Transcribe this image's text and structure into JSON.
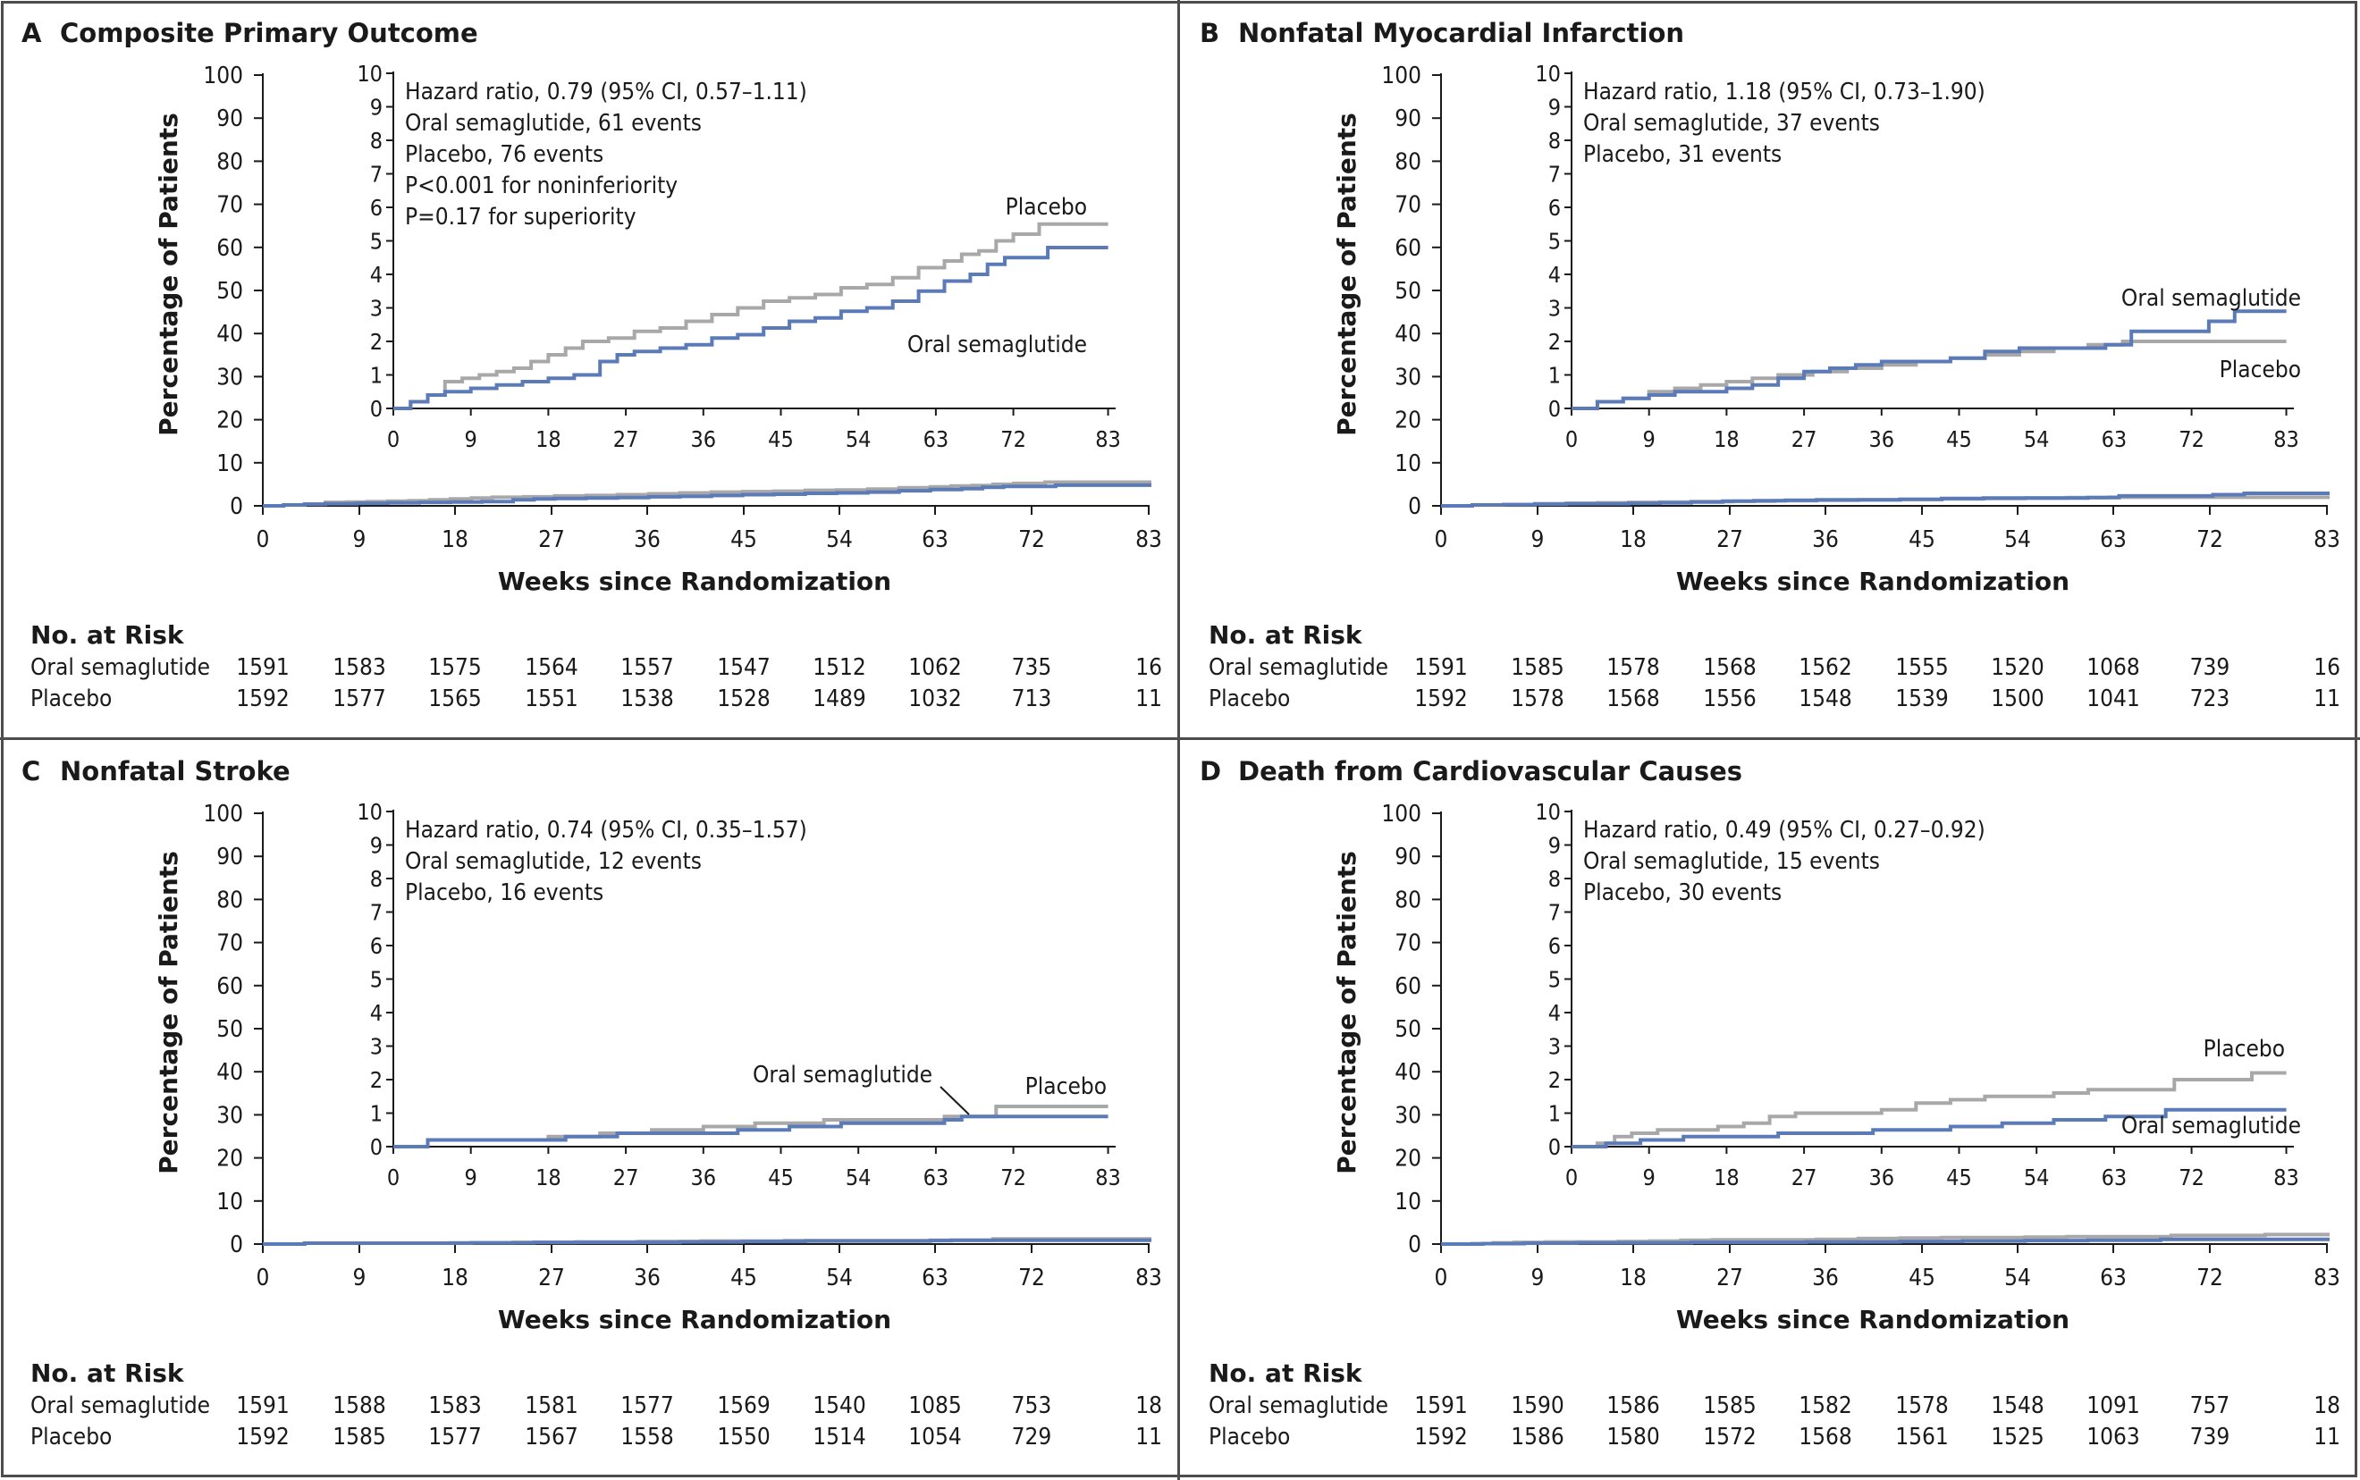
{
  "chart_data": [
    {
      "type": "line",
      "letter": "A",
      "title": "Composite Primary Outcome",
      "xlabel": "Weeks since Randomization",
      "ylabel": "Percentage of Patients",
      "x_ticks": [
        0,
        9,
        18,
        27,
        36,
        45,
        54,
        63,
        72,
        83
      ],
      "y_ticks": [
        0,
        10,
        20,
        30,
        40,
        50,
        60,
        70,
        80,
        90,
        100
      ],
      "xlim": [
        0,
        84.5
      ],
      "ylim": [
        0,
        100
      ],
      "inset": {
        "y_ticks": [
          0,
          1,
          2,
          3,
          4,
          5,
          6,
          7,
          8,
          9,
          10
        ],
        "ylim": [
          0,
          10
        ],
        "annotations": [
          "Hazard ratio, 0.79 (95% CI, 0.57–1.11)",
          "Oral semaglutide, 61 events",
          "Placebo, 76 events",
          "P<0.001 for noninferiority",
          "P=0.17 for superiority"
        ],
        "label_oral": "Oral semaglutide",
        "label_placebo": "Placebo"
      },
      "series": [
        {
          "name": "Placebo",
          "color": "#a8a8a8",
          "points": [
            [
              0,
              0
            ],
            [
              2,
              0.2
            ],
            [
              4,
              0.4
            ],
            [
              6,
              0.8
            ],
            [
              8,
              0.9
            ],
            [
              10,
              1.0
            ],
            [
              12,
              1.1
            ],
            [
              14,
              1.2
            ],
            [
              16,
              1.4
            ],
            [
              18,
              1.6
            ],
            [
              20,
              1.8
            ],
            [
              22,
              2.0
            ],
            [
              25,
              2.1
            ],
            [
              28,
              2.3
            ],
            [
              31,
              2.4
            ],
            [
              34,
              2.6
            ],
            [
              37,
              2.8
            ],
            [
              40,
              3.0
            ],
            [
              43,
              3.2
            ],
            [
              46,
              3.3
            ],
            [
              49,
              3.4
            ],
            [
              52,
              3.6
            ],
            [
              55,
              3.7
            ],
            [
              58,
              3.9
            ],
            [
              61,
              4.2
            ],
            [
              64,
              4.4
            ],
            [
              66,
              4.6
            ],
            [
              68,
              4.7
            ],
            [
              70,
              5.0
            ],
            [
              72,
              5.2
            ],
            [
              75,
              5.5
            ],
            [
              83,
              5.5
            ]
          ]
        },
        {
          "name": "Oral semaglutide",
          "color": "#5b7ab8",
          "points": [
            [
              0,
              0
            ],
            [
              2,
              0.2
            ],
            [
              4,
              0.4
            ],
            [
              6,
              0.5
            ],
            [
              9,
              0.6
            ],
            [
              12,
              0.7
            ],
            [
              15,
              0.8
            ],
            [
              18,
              0.9
            ],
            [
              21,
              1.0
            ],
            [
              24,
              1.4
            ],
            [
              26,
              1.6
            ],
            [
              28,
              1.7
            ],
            [
              31,
              1.8
            ],
            [
              34,
              1.9
            ],
            [
              37,
              2.1
            ],
            [
              40,
              2.2
            ],
            [
              43,
              2.4
            ],
            [
              46,
              2.6
            ],
            [
              49,
              2.7
            ],
            [
              52,
              2.9
            ],
            [
              55,
              3.0
            ],
            [
              58,
              3.2
            ],
            [
              61,
              3.5
            ],
            [
              64,
              3.8
            ],
            [
              67,
              4.0
            ],
            [
              69,
              4.3
            ],
            [
              71,
              4.5
            ],
            [
              74,
              4.5
            ],
            [
              76,
              4.8
            ],
            [
              83,
              4.8
            ]
          ]
        }
      ],
      "risk_table": {
        "header": "No. at Risk",
        "rows": [
          {
            "label": "Oral semaglutide",
            "values": [
              "1591",
              "1583",
              "1575",
              "1564",
              "1557",
              "1547",
              "1512",
              "1062",
              "735",
              "16"
            ]
          },
          {
            "label": "Placebo",
            "values": [
              "1592",
              "1577",
              "1565",
              "1551",
              "1538",
              "1528",
              "1489",
              "1032",
              "713",
              "11"
            ]
          }
        ]
      }
    },
    {
      "type": "line",
      "letter": "B",
      "title": "Nonfatal Myocardial Infarction",
      "xlabel": "Weeks since Randomization",
      "ylabel": "Percentage of Patients",
      "x_ticks": [
        0,
        9,
        18,
        27,
        36,
        45,
        54,
        63,
        72,
        83
      ],
      "y_ticks": [
        0,
        10,
        20,
        30,
        40,
        50,
        60,
        70,
        80,
        90,
        100
      ],
      "xlim": [
        0,
        84.5
      ],
      "ylim": [
        0,
        100
      ],
      "inset": {
        "y_ticks": [
          0,
          1,
          2,
          3,
          4,
          5,
          6,
          7,
          8,
          9,
          10
        ],
        "ylim": [
          0,
          10
        ],
        "annotations": [
          "Hazard ratio, 1.18 (95% CI, 0.73–1.90)",
          "Oral semaglutide, 37 events",
          "Placebo, 31 events"
        ],
        "label_oral": "Oral semaglutide",
        "label_placebo": "Placebo"
      },
      "series": [
        {
          "name": "Placebo",
          "color": "#a8a8a8",
          "points": [
            [
              0,
              0
            ],
            [
              3,
              0.2
            ],
            [
              6,
              0.3
            ],
            [
              9,
              0.5
            ],
            [
              12,
              0.6
            ],
            [
              15,
              0.7
            ],
            [
              18,
              0.8
            ],
            [
              21,
              0.9
            ],
            [
              24,
              1.0
            ],
            [
              28,
              1.1
            ],
            [
              32,
              1.2
            ],
            [
              36,
              1.3
            ],
            [
              40,
              1.4
            ],
            [
              44,
              1.5
            ],
            [
              48,
              1.6
            ],
            [
              52,
              1.7
            ],
            [
              56,
              1.8
            ],
            [
              60,
              1.9
            ],
            [
              64,
              2.0
            ],
            [
              83,
              2.0
            ]
          ]
        },
        {
          "name": "Oral semaglutide",
          "color": "#5b7ab8",
          "points": [
            [
              0,
              0
            ],
            [
              3,
              0.2
            ],
            [
              6,
              0.3
            ],
            [
              9,
              0.4
            ],
            [
              12,
              0.5
            ],
            [
              15,
              0.5
            ],
            [
              18,
              0.6
            ],
            [
              21,
              0.7
            ],
            [
              24,
              0.9
            ],
            [
              27,
              1.1
            ],
            [
              30,
              1.2
            ],
            [
              33,
              1.3
            ],
            [
              36,
              1.4
            ],
            [
              40,
              1.4
            ],
            [
              44,
              1.5
            ],
            [
              48,
              1.7
            ],
            [
              52,
              1.8
            ],
            [
              58,
              1.8
            ],
            [
              62,
              1.9
            ],
            [
              65,
              2.3
            ],
            [
              71,
              2.3
            ],
            [
              74,
              2.6
            ],
            [
              77,
              2.9
            ],
            [
              83,
              2.9
            ]
          ]
        }
      ],
      "risk_table": {
        "header": "No. at Risk",
        "rows": [
          {
            "label": "Oral semaglutide",
            "values": [
              "1591",
              "1585",
              "1578",
              "1568",
              "1562",
              "1555",
              "1520",
              "1068",
              "739",
              "16"
            ]
          },
          {
            "label": "Placebo",
            "values": [
              "1592",
              "1578",
              "1568",
              "1556",
              "1548",
              "1539",
              "1500",
              "1041",
              "723",
              "11"
            ]
          }
        ]
      }
    },
    {
      "type": "line",
      "letter": "C",
      "title": "Nonfatal Stroke",
      "xlabel": "Weeks since Randomization",
      "ylabel": "Percentage of Patients",
      "x_ticks": [
        0,
        9,
        18,
        27,
        36,
        45,
        54,
        63,
        72,
        83
      ],
      "y_ticks": [
        0,
        10,
        20,
        30,
        40,
        50,
        60,
        70,
        80,
        90,
        100
      ],
      "xlim": [
        0,
        84.5
      ],
      "ylim": [
        0,
        100
      ],
      "inset": {
        "y_ticks": [
          0,
          1,
          2,
          3,
          4,
          5,
          6,
          7,
          8,
          9,
          10
        ],
        "ylim": [
          0,
          10
        ],
        "annotations": [
          "Hazard ratio, 0.74 (95% CI, 0.35–1.57)",
          "Oral semaglutide, 12 events",
          "Placebo, 16 events"
        ],
        "label_oral": "Oral semaglutide",
        "label_placebo": "Placebo"
      },
      "series": [
        {
          "name": "Placebo",
          "color": "#a8a8a8",
          "points": [
            [
              0,
              0
            ],
            [
              4,
              0.2
            ],
            [
              12,
              0.2
            ],
            [
              18,
              0.3
            ],
            [
              24,
              0.4
            ],
            [
              30,
              0.5
            ],
            [
              36,
              0.6
            ],
            [
              42,
              0.7
            ],
            [
              50,
              0.8
            ],
            [
              58,
              0.8
            ],
            [
              64,
              0.9
            ],
            [
              70,
              1.2
            ],
            [
              83,
              1.2
            ]
          ]
        },
        {
          "name": "Oral semaglutide",
          "color": "#5b7ab8",
          "points": [
            [
              0,
              0
            ],
            [
              4,
              0.2
            ],
            [
              14,
              0.2
            ],
            [
              20,
              0.3
            ],
            [
              26,
              0.4
            ],
            [
              34,
              0.4
            ],
            [
              40,
              0.5
            ],
            [
              46,
              0.6
            ],
            [
              52,
              0.7
            ],
            [
              60,
              0.7
            ],
            [
              64,
              0.8
            ],
            [
              66,
              0.9
            ],
            [
              83,
              0.9
            ]
          ]
        }
      ],
      "risk_table": {
        "header": "No. at Risk",
        "rows": [
          {
            "label": "Oral semaglutide",
            "values": [
              "1591",
              "1588",
              "1583",
              "1581",
              "1577",
              "1569",
              "1540",
              "1085",
              "753",
              "18"
            ]
          },
          {
            "label": "Placebo",
            "values": [
              "1592",
              "1585",
              "1577",
              "1567",
              "1558",
              "1550",
              "1514",
              "1054",
              "729",
              "11"
            ]
          }
        ]
      }
    },
    {
      "type": "line",
      "letter": "D",
      "title": "Death from Cardiovascular Causes",
      "xlabel": "Weeks since Randomization",
      "ylabel": "Percentage of Patients",
      "x_ticks": [
        0,
        9,
        18,
        27,
        36,
        45,
        54,
        63,
        72,
        83
      ],
      "y_ticks": [
        0,
        10,
        20,
        30,
        40,
        50,
        60,
        70,
        80,
        90,
        100
      ],
      "xlim": [
        0,
        84.5
      ],
      "ylim": [
        0,
        100
      ],
      "inset": {
        "y_ticks": [
          0,
          1,
          2,
          3,
          4,
          5,
          6,
          7,
          8,
          9,
          10
        ],
        "ylim": [
          0,
          10
        ],
        "annotations": [
          "Hazard ratio, 0.49 (95% CI, 0.27–0.92)",
          "Oral semaglutide, 15 events",
          "Placebo, 30 events"
        ],
        "label_oral": "Oral semaglutide",
        "label_placebo": "Placebo"
      },
      "series": [
        {
          "name": "Placebo",
          "color": "#a8a8a8",
          "points": [
            [
              0,
              0
            ],
            [
              3,
              0.1
            ],
            [
              5,
              0.3
            ],
            [
              7,
              0.4
            ],
            [
              10,
              0.5
            ],
            [
              14,
              0.5
            ],
            [
              17,
              0.6
            ],
            [
              20,
              0.7
            ],
            [
              23,
              0.9
            ],
            [
              26,
              1.0
            ],
            [
              32,
              1.0
            ],
            [
              36,
              1.1
            ],
            [
              40,
              1.3
            ],
            [
              44,
              1.4
            ],
            [
              48,
              1.5
            ],
            [
              52,
              1.5
            ],
            [
              56,
              1.6
            ],
            [
              60,
              1.7
            ],
            [
              63,
              1.7
            ],
            [
              68,
              1.7
            ],
            [
              70,
              2.0
            ],
            [
              77,
              2.0
            ],
            [
              79,
              2.2
            ],
            [
              83,
              2.2
            ]
          ]
        },
        {
          "name": "Oral semaglutide",
          "color": "#5b7ab8",
          "points": [
            [
              0,
              0
            ],
            [
              4,
              0.1
            ],
            [
              8,
              0.2
            ],
            [
              13,
              0.3
            ],
            [
              20,
              0.3
            ],
            [
              24,
              0.4
            ],
            [
              30,
              0.4
            ],
            [
              35,
              0.5
            ],
            [
              40,
              0.5
            ],
            [
              44,
              0.6
            ],
            [
              50,
              0.7
            ],
            [
              56,
              0.8
            ],
            [
              62,
              0.9
            ],
            [
              67,
              0.9
            ],
            [
              69,
              1.1
            ],
            [
              83,
              1.1
            ]
          ]
        }
      ],
      "risk_table": {
        "header": "No. at Risk",
        "rows": [
          {
            "label": "Oral semaglutide",
            "values": [
              "1591",
              "1590",
              "1586",
              "1585",
              "1582",
              "1578",
              "1548",
              "1091",
              "757",
              "18"
            ]
          },
          {
            "label": "Placebo",
            "values": [
              "1592",
              "1586",
              "1580",
              "1572",
              "1568",
              "1561",
              "1525",
              "1063",
              "739",
              "11"
            ]
          }
        ]
      }
    }
  ]
}
